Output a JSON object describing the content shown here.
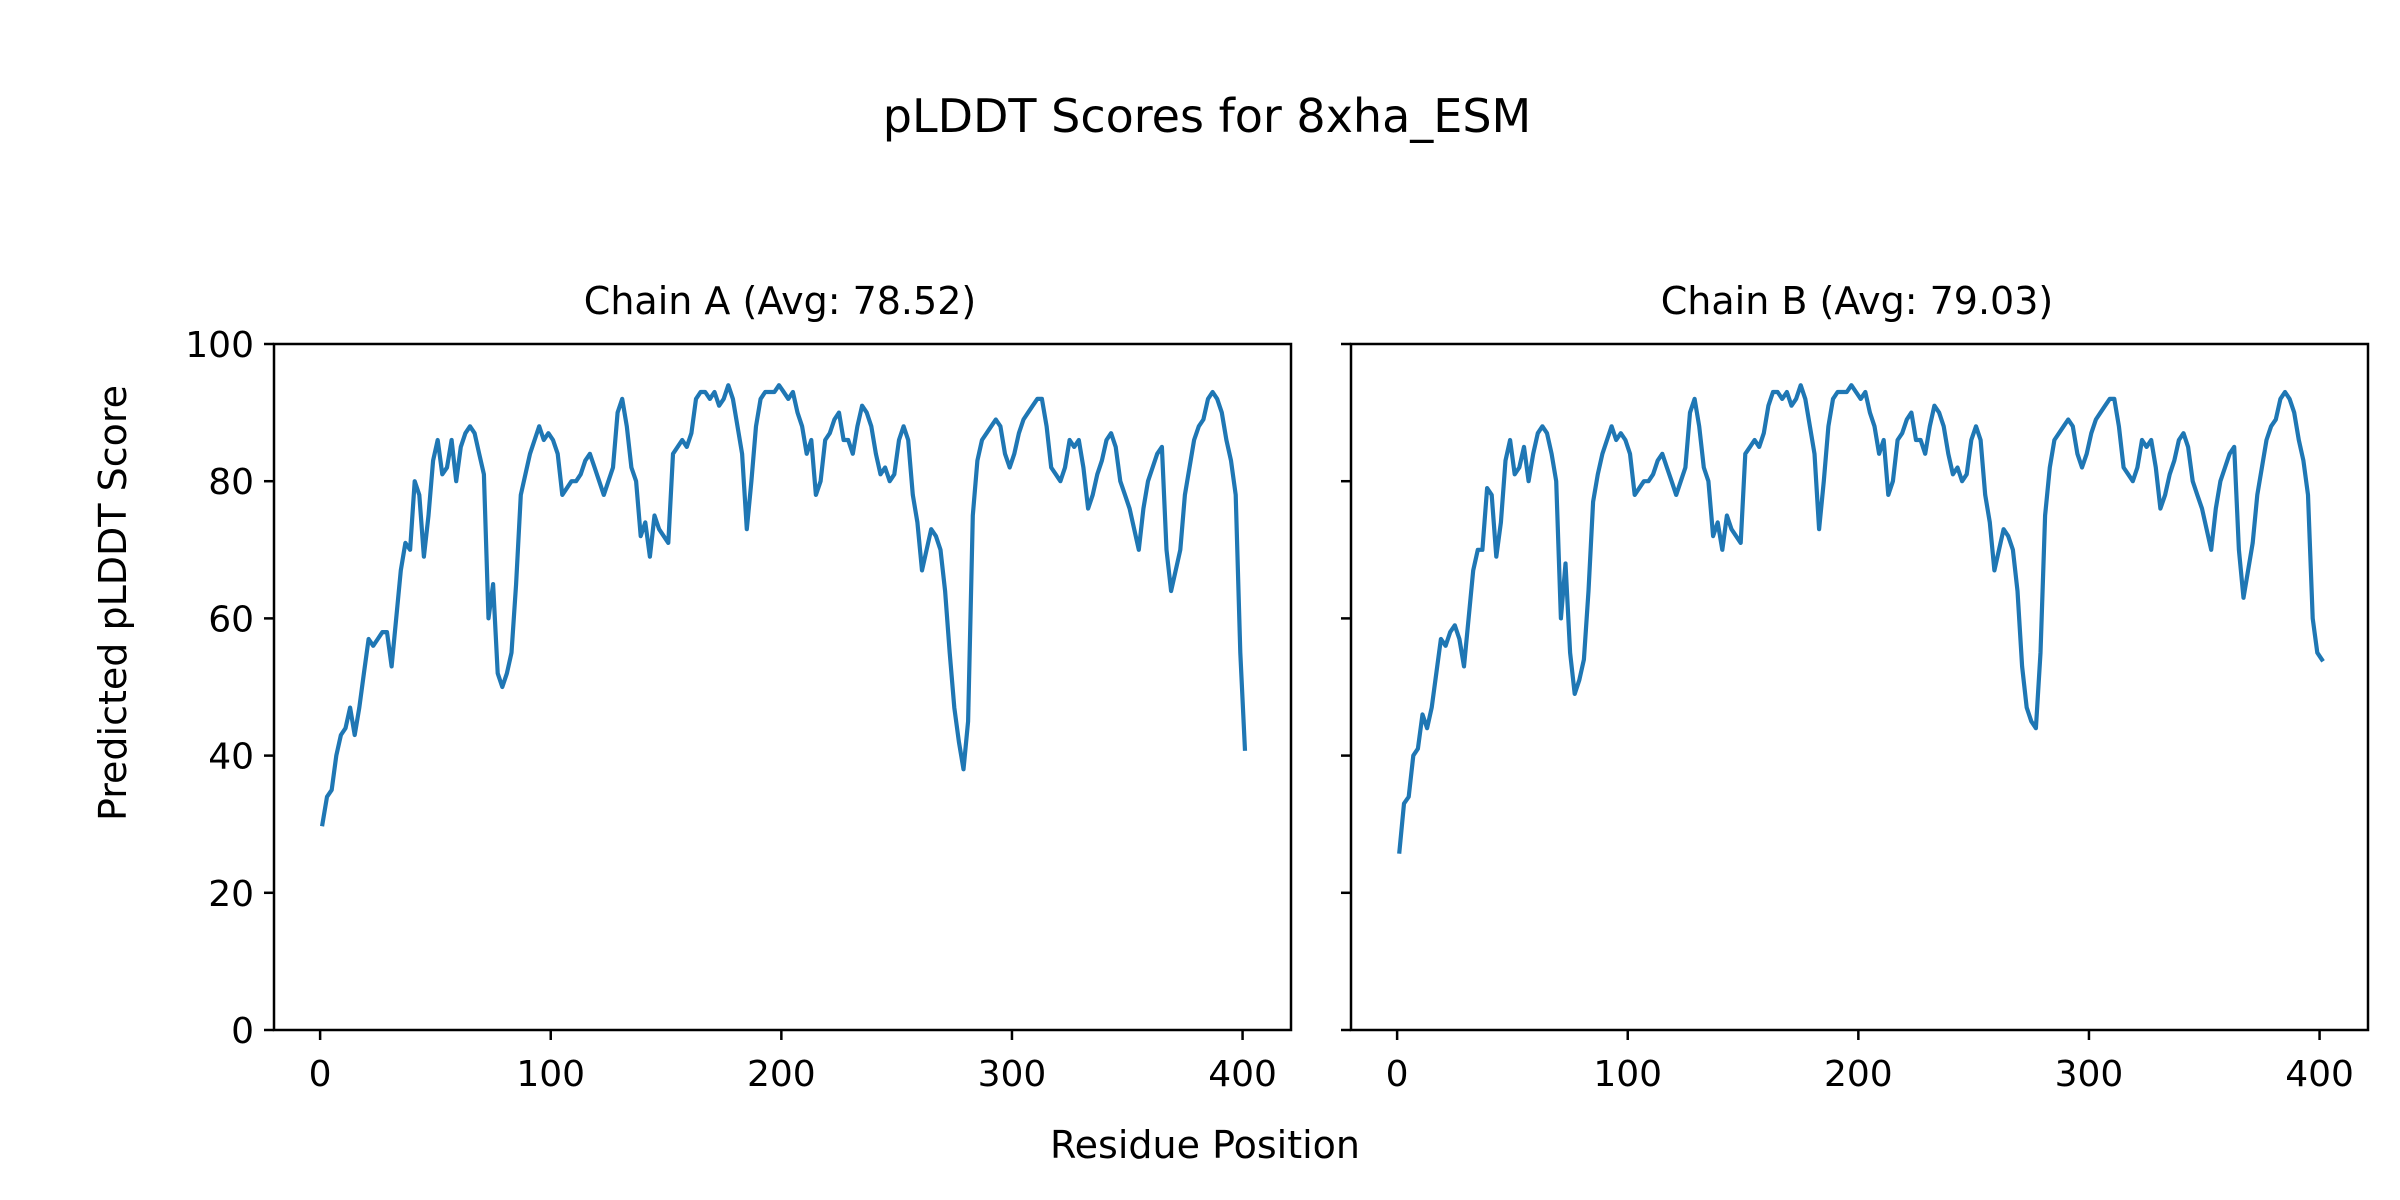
{
  "chart_data": {
    "type": "line",
    "title": "pLDDT Scores for 8xha_ESM",
    "xlabel": "Residue Position",
    "ylabel": "Predicted pLDDT Score",
    "xlim": [
      -20,
      421
    ],
    "ylim": [
      0,
      100
    ],
    "xticks": [
      0,
      100,
      200,
      300,
      400
    ],
    "yticks": [
      0,
      20,
      40,
      60,
      80,
      100
    ],
    "grid": false,
    "line_color": "#1f77b4",
    "panels": [
      {
        "title": "Chain A (Avg: 78.52)",
        "series": [
          {
            "x": [
              1,
              3,
              5,
              7,
              9,
              11,
              13,
              15,
              17,
              19,
              21,
              23,
              25,
              27,
              29,
              31,
              33,
              35,
              37,
              39,
              41,
              43,
              45,
              47,
              49,
              51,
              53,
              55,
              57,
              59,
              61,
              63,
              65,
              67,
              69,
              71,
              73,
              75,
              77,
              79,
              81,
              83,
              85,
              87,
              89,
              91,
              93,
              95,
              97,
              99,
              101,
              103,
              105,
              107,
              109,
              111,
              113,
              115,
              117,
              119,
              121,
              123,
              125,
              127,
              129,
              131,
              133,
              135,
              137,
              139,
              141,
              143,
              145,
              147,
              149,
              151,
              153,
              155,
              157,
              159,
              161,
              163,
              165,
              167,
              169,
              171,
              173,
              175,
              177,
              179,
              181,
              183,
              185,
              187,
              189,
              191,
              193,
              195,
              197,
              199,
              201,
              203,
              205,
              207,
              209,
              211,
              213,
              215,
              217,
              219,
              221,
              223,
              225,
              227,
              229,
              231,
              233,
              235,
              237,
              239,
              241,
              243,
              245,
              247,
              249,
              251,
              253,
              255,
              257,
              259,
              261,
              263,
              265,
              267,
              269,
              271,
              273,
              275,
              277,
              279,
              281,
              283,
              285,
              287,
              289,
              291,
              293,
              295,
              297,
              299,
              301,
              303,
              305,
              307,
              309,
              311,
              313,
              315,
              317,
              319,
              321,
              323,
              325,
              327,
              329,
              331,
              333,
              335,
              337,
              339,
              341,
              343,
              345,
              347,
              349,
              351,
              353,
              355,
              357,
              359,
              361,
              363,
              365,
              367,
              369,
              371,
              373,
              375,
              377,
              379,
              381,
              383,
              385,
              387,
              389,
              391,
              393,
              395,
              397,
              399,
              401
            ],
            "y": [
              30,
              34,
              35,
              40,
              43,
              44,
              47,
              43,
              47,
              52,
              57,
              56,
              57,
              58,
              58,
              53,
              60,
              67,
              71,
              70,
              80,
              78,
              69,
              75,
              83,
              86,
              81,
              82,
              86,
              80,
              85,
              87,
              88,
              87,
              84,
              81,
              60,
              65,
              52,
              50,
              52,
              55,
              65,
              78,
              81,
              84,
              86,
              88,
              86,
              87,
              86,
              84,
              78,
              79,
              80,
              80,
              81,
              83,
              84,
              82,
              80,
              78,
              80,
              82,
              90,
              92,
              88,
              82,
              80,
              72,
              74,
              69,
              75,
              73,
              72,
              71,
              84,
              85,
              86,
              85,
              87,
              92,
              93,
              93,
              92,
              93,
              91,
              92,
              94,
              92,
              88,
              84,
              73,
              80,
              88,
              92,
              93,
              93,
              93,
              94,
              93,
              92,
              93,
              90,
              88,
              84,
              86,
              78,
              80,
              86,
              87,
              89,
              90,
              86,
              86,
              84,
              88,
              91,
              90,
              88,
              84,
              81,
              82,
              80,
              81,
              86,
              88,
              86,
              78,
              74,
              67,
              70,
              73,
              72,
              70,
              64,
              55,
              47,
              42,
              38,
              45,
              75,
              83,
              86,
              87,
              88,
              89,
              88,
              84,
              82,
              84,
              87,
              89,
              90,
              91,
              92,
              92,
              88,
              82,
              81,
              80,
              82,
              86,
              85,
              86,
              82,
              76,
              78,
              81,
              83,
              86,
              87,
              85,
              80,
              78,
              76,
              73,
              70,
              76,
              80,
              82,
              84,
              85,
              70,
              64,
              67,
              70,
              78,
              82,
              86,
              88,
              89,
              92,
              93,
              92,
              90,
              86,
              83,
              78,
              55,
              41
            ]
          }
        ]
      },
      {
        "title": "Chain B (Avg: 79.03)",
        "series": [
          {
            "x": [
              1,
              3,
              5,
              7,
              9,
              11,
              13,
              15,
              17,
              19,
              21,
              23,
              25,
              27,
              29,
              31,
              33,
              35,
              37,
              39,
              41,
              43,
              45,
              47,
              49,
              51,
              53,
              55,
              57,
              59,
              61,
              63,
              65,
              67,
              69,
              71,
              73,
              75,
              77,
              79,
              81,
              83,
              85,
              87,
              89,
              91,
              93,
              95,
              97,
              99,
              101,
              103,
              105,
              107,
              109,
              111,
              113,
              115,
              117,
              119,
              121,
              123,
              125,
              127,
              129,
              131,
              133,
              135,
              137,
              139,
              141,
              143,
              145,
              147,
              149,
              151,
              153,
              155,
              157,
              159,
              161,
              163,
              165,
              167,
              169,
              171,
              173,
              175,
              177,
              179,
              181,
              183,
              185,
              187,
              189,
              191,
              193,
              195,
              197,
              199,
              201,
              203,
              205,
              207,
              209,
              211,
              213,
              215,
              217,
              219,
              221,
              223,
              225,
              227,
              229,
              231,
              233,
              235,
              237,
              239,
              241,
              243,
              245,
              247,
              249,
              251,
              253,
              255,
              257,
              259,
              261,
              263,
              265,
              267,
              269,
              271,
              273,
              275,
              277,
              279,
              281,
              283,
              285,
              287,
              289,
              291,
              293,
              295,
              297,
              299,
              301,
              303,
              305,
              307,
              309,
              311,
              313,
              315,
              317,
              319,
              321,
              323,
              325,
              327,
              329,
              331,
              333,
              335,
              337,
              339,
              341,
              343,
              345,
              347,
              349,
              351,
              353,
              355,
              357,
              359,
              361,
              363,
              365,
              367,
              369,
              371,
              373,
              375,
              377,
              379,
              381,
              383,
              385,
              387,
              389,
              391,
              393,
              395,
              397,
              399,
              401
            ],
            "y": [
              26,
              33,
              34,
              40,
              41,
              46,
              44,
              47,
              52,
              57,
              56,
              58,
              59,
              57,
              53,
              60,
              67,
              70,
              70,
              79,
              78,
              69,
              74,
              83,
              86,
              81,
              82,
              85,
              80,
              84,
              87,
              88,
              87,
              84,
              80,
              60,
              68,
              55,
              49,
              51,
              54,
              64,
              77,
              81,
              84,
              86,
              88,
              86,
              87,
              86,
              84,
              78,
              79,
              80,
              80,
              81,
              83,
              84,
              82,
              80,
              78,
              80,
              82,
              90,
              92,
              88,
              82,
              80,
              72,
              74,
              70,
              75,
              73,
              72,
              71,
              84,
              85,
              86,
              85,
              87,
              91,
              93,
              93,
              92,
              93,
              91,
              92,
              94,
              92,
              88,
              84,
              73,
              80,
              88,
              92,
              93,
              93,
              93,
              94,
              93,
              92,
              93,
              90,
              88,
              84,
              86,
              78,
              80,
              86,
              87,
              89,
              90,
              86,
              86,
              84,
              88,
              91,
              90,
              88,
              84,
              81,
              82,
              80,
              81,
              86,
              88,
              86,
              78,
              74,
              67,
              70,
              73,
              72,
              70,
              64,
              53,
              47,
              45,
              44,
              55,
              75,
              82,
              86,
              87,
              88,
              89,
              88,
              84,
              82,
              84,
              87,
              89,
              90,
              91,
              92,
              92,
              88,
              82,
              81,
              80,
              82,
              86,
              85,
              86,
              82,
              76,
              78,
              81,
              83,
              86,
              87,
              85,
              80,
              78,
              76,
              73,
              70,
              76,
              80,
              82,
              84,
              85,
              70,
              63,
              67,
              71,
              78,
              82,
              86,
              88,
              89,
              92,
              93,
              92,
              90,
              86,
              83,
              78,
              60,
              55,
              54
            ]
          }
        ]
      }
    ]
  }
}
